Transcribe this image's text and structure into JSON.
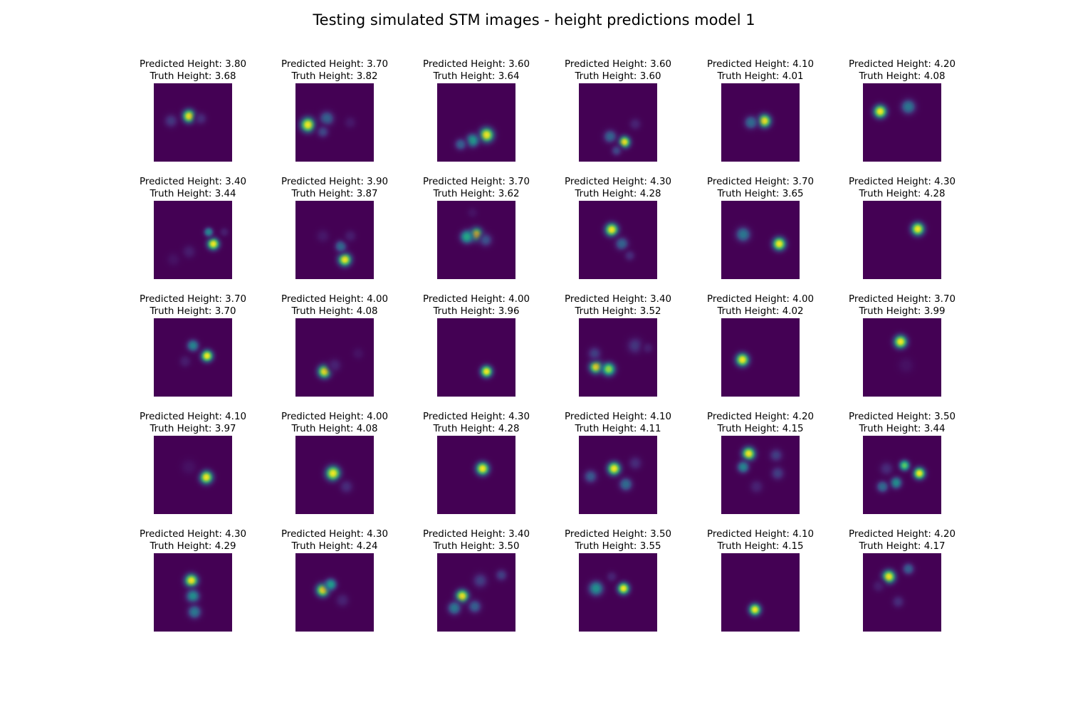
{
  "title": "Testing simulated STM images - height predictions model 1",
  "colors": {
    "background": "#440154",
    "colormap": "viridis"
  },
  "chart_data": {
    "type": "heatmap",
    "title": "Testing simulated STM images - height predictions model 1",
    "grid": false,
    "layout": "5 rows x 6 columns",
    "axes_visible": false,
    "panels": [
      {
        "pred": "Predicted Height: 3.80",
        "truth": "Truth Height: 3.68",
        "blobs": [
          [
            0.45,
            0.42,
            0.1,
            1.0
          ],
          [
            0.22,
            0.48,
            0.1,
            0.18
          ],
          [
            0.6,
            0.45,
            0.09,
            0.15
          ]
        ]
      },
      {
        "pred": "Predicted Height: 3.70",
        "truth": "Truth Height: 3.82",
        "blobs": [
          [
            0.16,
            0.53,
            0.11,
            1.0
          ],
          [
            0.4,
            0.45,
            0.11,
            0.32
          ],
          [
            0.35,
            0.62,
            0.09,
            0.22
          ],
          [
            0.7,
            0.5,
            0.09,
            0.08
          ]
        ]
      },
      {
        "pred": "Predicted Height: 3.60",
        "truth": "Truth Height: 3.64",
        "blobs": [
          [
            0.63,
            0.66,
            0.11,
            1.0
          ],
          [
            0.45,
            0.73,
            0.1,
            0.55
          ],
          [
            0.3,
            0.78,
            0.09,
            0.3
          ]
        ]
      },
      {
        "pred": "Predicted Height: 3.60",
        "truth": "Truth Height: 3.60",
        "blobs": [
          [
            0.58,
            0.75,
            0.09,
            1.0
          ],
          [
            0.4,
            0.68,
            0.1,
            0.32
          ],
          [
            0.72,
            0.52,
            0.09,
            0.12
          ],
          [
            0.48,
            0.86,
            0.08,
            0.22
          ]
        ]
      },
      {
        "pred": "Predicted Height: 4.10",
        "truth": "Truth Height: 4.01",
        "blobs": [
          [
            0.55,
            0.48,
            0.1,
            1.0
          ],
          [
            0.38,
            0.5,
            0.1,
            0.35
          ]
        ]
      },
      {
        "pred": "Predicted Height: 4.20",
        "truth": "Truth Height: 4.08",
        "blobs": [
          [
            0.22,
            0.36,
            0.1,
            1.0
          ],
          [
            0.58,
            0.3,
            0.11,
            0.4
          ]
        ]
      },
      {
        "pred": "Predicted Height: 3.40",
        "truth": "Truth Height: 3.44",
        "blobs": [
          [
            0.76,
            0.55,
            0.09,
            1.0
          ],
          [
            0.7,
            0.4,
            0.07,
            0.45
          ],
          [
            0.9,
            0.4,
            0.07,
            0.1
          ],
          [
            0.45,
            0.65,
            0.1,
            0.1
          ],
          [
            0.25,
            0.75,
            0.1,
            0.06
          ]
        ]
      },
      {
        "pred": "Predicted Height: 3.90",
        "truth": "Truth Height: 3.87",
        "blobs": [
          [
            0.63,
            0.75,
            0.1,
            1.0
          ],
          [
            0.58,
            0.58,
            0.09,
            0.35
          ],
          [
            0.7,
            0.45,
            0.09,
            0.1
          ],
          [
            0.35,
            0.45,
            0.1,
            0.08
          ]
        ]
      },
      {
        "pred": "Predicted Height: 3.70",
        "truth": "Truth Height: 3.62",
        "blobs": [
          [
            0.5,
            0.43,
            0.1,
            1.0
          ],
          [
            0.38,
            0.46,
            0.1,
            0.6
          ],
          [
            0.62,
            0.5,
            0.1,
            0.25
          ],
          [
            0.45,
            0.15,
            0.08,
            0.06
          ]
        ]
      },
      {
        "pred": "Predicted Height: 4.30",
        "truth": "Truth Height: 4.28",
        "blobs": [
          [
            0.42,
            0.37,
            0.1,
            1.0
          ],
          [
            0.55,
            0.55,
            0.1,
            0.32
          ],
          [
            0.65,
            0.7,
            0.08,
            0.15
          ]
        ]
      },
      {
        "pred": "Predicted Height: 3.70",
        "truth": "Truth Height: 3.65",
        "blobs": [
          [
            0.74,
            0.55,
            0.1,
            1.0
          ],
          [
            0.28,
            0.43,
            0.11,
            0.4
          ]
        ]
      },
      {
        "pred": "Predicted Height: 4.30",
        "truth": "Truth Height: 4.28",
        "blobs": [
          [
            0.7,
            0.36,
            0.1,
            1.0
          ]
        ]
      },
      {
        "pred": "Predicted Height: 3.70",
        "truth": "Truth Height: 3.70",
        "blobs": [
          [
            0.68,
            0.48,
            0.09,
            1.0
          ],
          [
            0.5,
            0.35,
            0.09,
            0.45
          ],
          [
            0.4,
            0.55,
            0.09,
            0.1
          ]
        ]
      },
      {
        "pred": "Predicted Height: 4.00",
        "truth": "Truth Height: 4.08",
        "blobs": [
          [
            0.37,
            0.68,
            0.1,
            1.0
          ],
          [
            0.5,
            0.6,
            0.1,
            0.12
          ],
          [
            0.8,
            0.45,
            0.09,
            0.06
          ]
        ]
      },
      {
        "pred": "Predicted Height: 4.00",
        "truth": "Truth Height: 3.96",
        "blobs": [
          [
            0.63,
            0.68,
            0.09,
            1.0
          ]
        ]
      },
      {
        "pred": "Predicted Height: 3.40",
        "truth": "Truth Height: 3.52",
        "blobs": [
          [
            0.22,
            0.62,
            0.1,
            1.0
          ],
          [
            0.38,
            0.65,
            0.1,
            0.85
          ],
          [
            0.2,
            0.45,
            0.1,
            0.2
          ],
          [
            0.72,
            0.35,
            0.12,
            0.18
          ],
          [
            0.88,
            0.38,
            0.08,
            0.1
          ]
        ]
      },
      {
        "pred": "Predicted Height: 4.00",
        "truth": "Truth Height: 4.02",
        "blobs": [
          [
            0.27,
            0.53,
            0.1,
            1.0
          ]
        ]
      },
      {
        "pred": "Predicted Height: 3.70",
        "truth": "Truth Height: 3.99",
        "blobs": [
          [
            0.48,
            0.3,
            0.1,
            1.0
          ],
          [
            0.55,
            0.6,
            0.12,
            0.06
          ]
        ]
      },
      {
        "pred": "Predicted Height: 4.10",
        "truth": "Truth Height: 3.97",
        "blobs": [
          [
            0.67,
            0.53,
            0.1,
            1.0
          ],
          [
            0.45,
            0.4,
            0.12,
            0.06
          ]
        ]
      },
      {
        "pred": "Predicted Height: 4.00",
        "truth": "Truth Height: 4.08",
        "blobs": [
          [
            0.48,
            0.48,
            0.11,
            1.0
          ],
          [
            0.65,
            0.65,
            0.1,
            0.15
          ]
        ]
      },
      {
        "pred": "Predicted Height: 4.30",
        "truth": "Truth Height: 4.28",
        "blobs": [
          [
            0.58,
            0.42,
            0.1,
            1.0
          ]
        ]
      },
      {
        "pred": "Predicted Height: 4.10",
        "truth": "Truth Height: 4.11",
        "blobs": [
          [
            0.45,
            0.42,
            0.1,
            1.0
          ],
          [
            0.6,
            0.62,
            0.1,
            0.35
          ],
          [
            0.15,
            0.52,
            0.1,
            0.28
          ],
          [
            0.72,
            0.35,
            0.1,
            0.15
          ]
        ]
      },
      {
        "pred": "Predicted Height: 4.20",
        "truth": "Truth Height: 4.15",
        "blobs": [
          [
            0.35,
            0.23,
            0.1,
            1.0
          ],
          [
            0.28,
            0.4,
            0.09,
            0.45
          ],
          [
            0.7,
            0.25,
            0.1,
            0.2
          ],
          [
            0.72,
            0.48,
            0.1,
            0.2
          ],
          [
            0.45,
            0.65,
            0.1,
            0.12
          ]
        ]
      },
      {
        "pred": "Predicted Height: 3.50",
        "truth": "Truth Height: 3.44",
        "blobs": [
          [
            0.72,
            0.48,
            0.09,
            1.0
          ],
          [
            0.53,
            0.38,
            0.08,
            0.75
          ],
          [
            0.42,
            0.6,
            0.09,
            0.5
          ],
          [
            0.25,
            0.65,
            0.09,
            0.35
          ],
          [
            0.3,
            0.42,
            0.1,
            0.15
          ]
        ]
      },
      {
        "pred": "Predicted Height: 4.30",
        "truth": "Truth Height: 4.29",
        "blobs": [
          [
            0.48,
            0.35,
            0.1,
            1.0
          ],
          [
            0.5,
            0.55,
            0.1,
            0.5
          ],
          [
            0.52,
            0.75,
            0.1,
            0.4
          ]
        ]
      },
      {
        "pred": "Predicted Height: 4.30",
        "truth": "Truth Height: 4.24",
        "blobs": [
          [
            0.35,
            0.47,
            0.1,
            1.0
          ],
          [
            0.45,
            0.4,
            0.09,
            0.55
          ],
          [
            0.6,
            0.6,
            0.1,
            0.12
          ]
        ]
      },
      {
        "pred": "Predicted Height: 3.40",
        "truth": "Truth Height: 3.50",
        "blobs": [
          [
            0.32,
            0.55,
            0.1,
            1.0
          ],
          [
            0.22,
            0.7,
            0.1,
            0.4
          ],
          [
            0.48,
            0.68,
            0.1,
            0.3
          ],
          [
            0.55,
            0.35,
            0.11,
            0.2
          ],
          [
            0.82,
            0.28,
            0.09,
            0.2
          ]
        ]
      },
      {
        "pred": "Predicted Height: 3.50",
        "truth": "Truth Height: 3.55",
        "blobs": [
          [
            0.57,
            0.45,
            0.09,
            1.0
          ],
          [
            0.22,
            0.45,
            0.11,
            0.5
          ],
          [
            0.42,
            0.3,
            0.08,
            0.12
          ]
        ]
      },
      {
        "pred": "Predicted Height: 4.10",
        "truth": "Truth Height: 4.15",
        "blobs": [
          [
            0.43,
            0.72,
            0.09,
            1.0
          ]
        ]
      },
      {
        "pred": "Predicted Height: 4.20",
        "truth": "Truth Height: 4.17",
        "blobs": [
          [
            0.33,
            0.3,
            0.1,
            1.0
          ],
          [
            0.58,
            0.2,
            0.09,
            0.3
          ],
          [
            0.45,
            0.62,
            0.09,
            0.15
          ],
          [
            0.2,
            0.42,
            0.09,
            0.1
          ]
        ]
      }
    ]
  }
}
